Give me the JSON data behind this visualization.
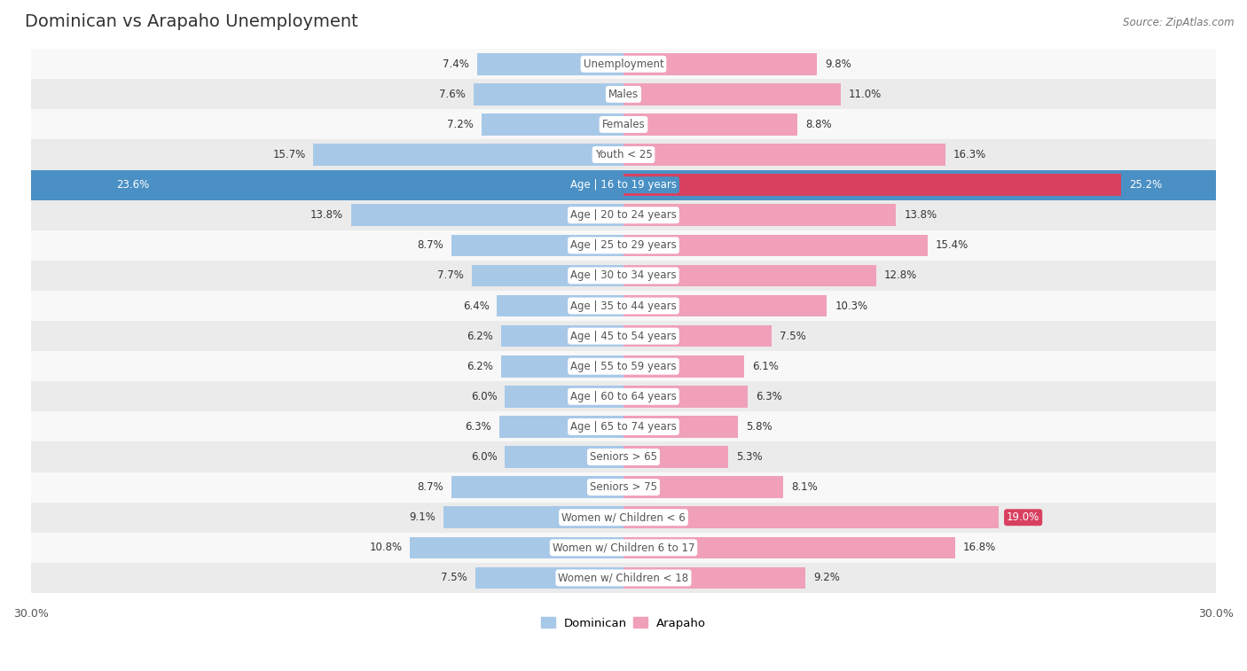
{
  "title": "Dominican vs Arapaho Unemployment",
  "source": "Source: ZipAtlas.com",
  "categories": [
    "Unemployment",
    "Males",
    "Females",
    "Youth < 25",
    "Age | 16 to 19 years",
    "Age | 20 to 24 years",
    "Age | 25 to 29 years",
    "Age | 30 to 34 years",
    "Age | 35 to 44 years",
    "Age | 45 to 54 years",
    "Age | 55 to 59 years",
    "Age | 60 to 64 years",
    "Age | 65 to 74 years",
    "Seniors > 65",
    "Seniors > 75",
    "Women w/ Children < 6",
    "Women w/ Children 6 to 17",
    "Women w/ Children < 18"
  ],
  "dominican": [
    7.4,
    7.6,
    7.2,
    15.7,
    23.6,
    13.8,
    8.7,
    7.7,
    6.4,
    6.2,
    6.2,
    6.0,
    6.3,
    6.0,
    8.7,
    9.1,
    10.8,
    7.5
  ],
  "arapaho": [
    9.8,
    11.0,
    8.8,
    16.3,
    25.2,
    13.8,
    15.4,
    12.8,
    10.3,
    7.5,
    6.1,
    6.3,
    5.8,
    5.3,
    8.1,
    19.0,
    16.8,
    9.2
  ],
  "dominican_color": "#a8c8e8",
  "arapaho_color": "#f0a0b8",
  "dominican_highlight": "#4a90c4",
  "arapaho_highlight": "#d94060",
  "max_val": 30.0,
  "bg_row_even": "#ebebeb",
  "bg_row_odd": "#f8f8f8",
  "highlight_row": 4,
  "highlight_bg": "#4a90c4",
  "highlight_arapaho_bg": "#d94060",
  "title_fontsize": 14,
  "label_fontsize": 8.5,
  "value_fontsize": 8.5
}
